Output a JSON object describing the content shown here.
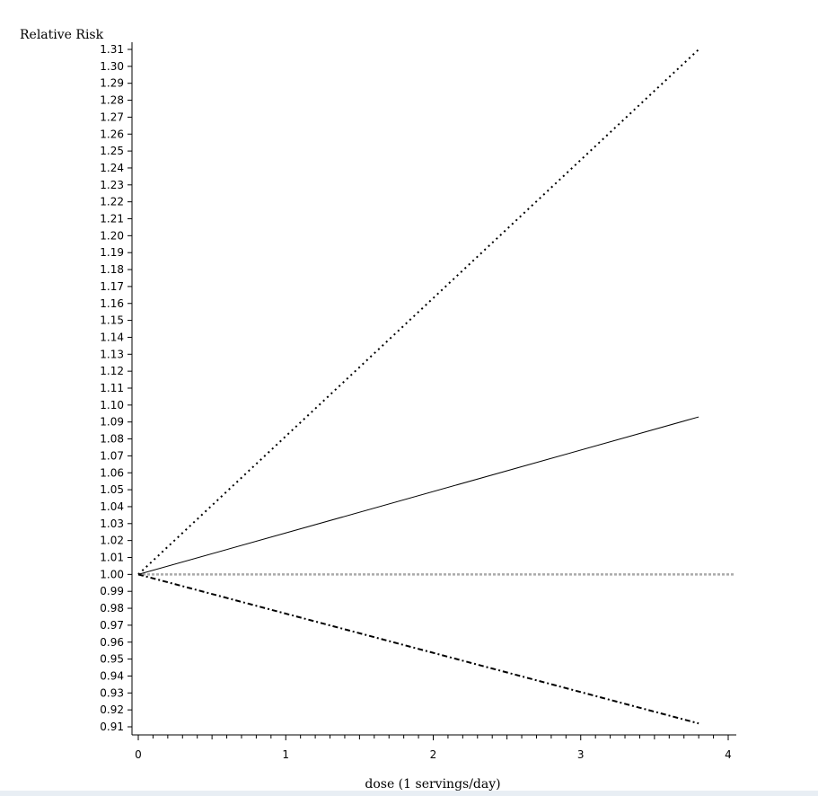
{
  "chart_data": {
    "type": "line",
    "title": "",
    "xlabel": "dose (1 servings/day)",
    "ylabel": "Relative Risk",
    "xlim": [
      0,
      4
    ],
    "ylim": [
      0.91,
      1.31
    ],
    "x_ticks": [
      "0",
      "1",
      "2",
      "3",
      "4"
    ],
    "y_ticks": [
      "0.91",
      "0.92",
      "0.93",
      "0.94",
      "0.95",
      "0.96",
      "0.97",
      "0.98",
      "0.99",
      "1.00",
      "1.01",
      "1.02",
      "1.03",
      "1.04",
      "1.05",
      "1.06",
      "1.07",
      "1.08",
      "1.09",
      "1.10",
      "1.11",
      "1.12",
      "1.13",
      "1.14",
      "1.15",
      "1.16",
      "1.17",
      "1.18",
      "1.19",
      "1.20",
      "1.21",
      "1.22",
      "1.23",
      "1.24",
      "1.25",
      "1.26",
      "1.27",
      "1.28",
      "1.29",
      "1.30",
      "1.31"
    ],
    "grid": false,
    "legend": "none",
    "series": [
      {
        "x": [
          0,
          3.8
        ],
        "y": [
          1.0,
          1.31
        ],
        "style": "dotted",
        "color": "#000000"
      },
      {
        "x": [
          0,
          3.8
        ],
        "y": [
          1.0,
          1.093
        ],
        "style": "solid",
        "color": "#000000"
      },
      {
        "x": [
          0,
          3.8
        ],
        "y": [
          1.0,
          0.912
        ],
        "style": "dashdot",
        "color": "#000000"
      }
    ],
    "reference_line": {
      "y": 1.0,
      "style": "dotted",
      "color": "#aaaaaa"
    }
  }
}
